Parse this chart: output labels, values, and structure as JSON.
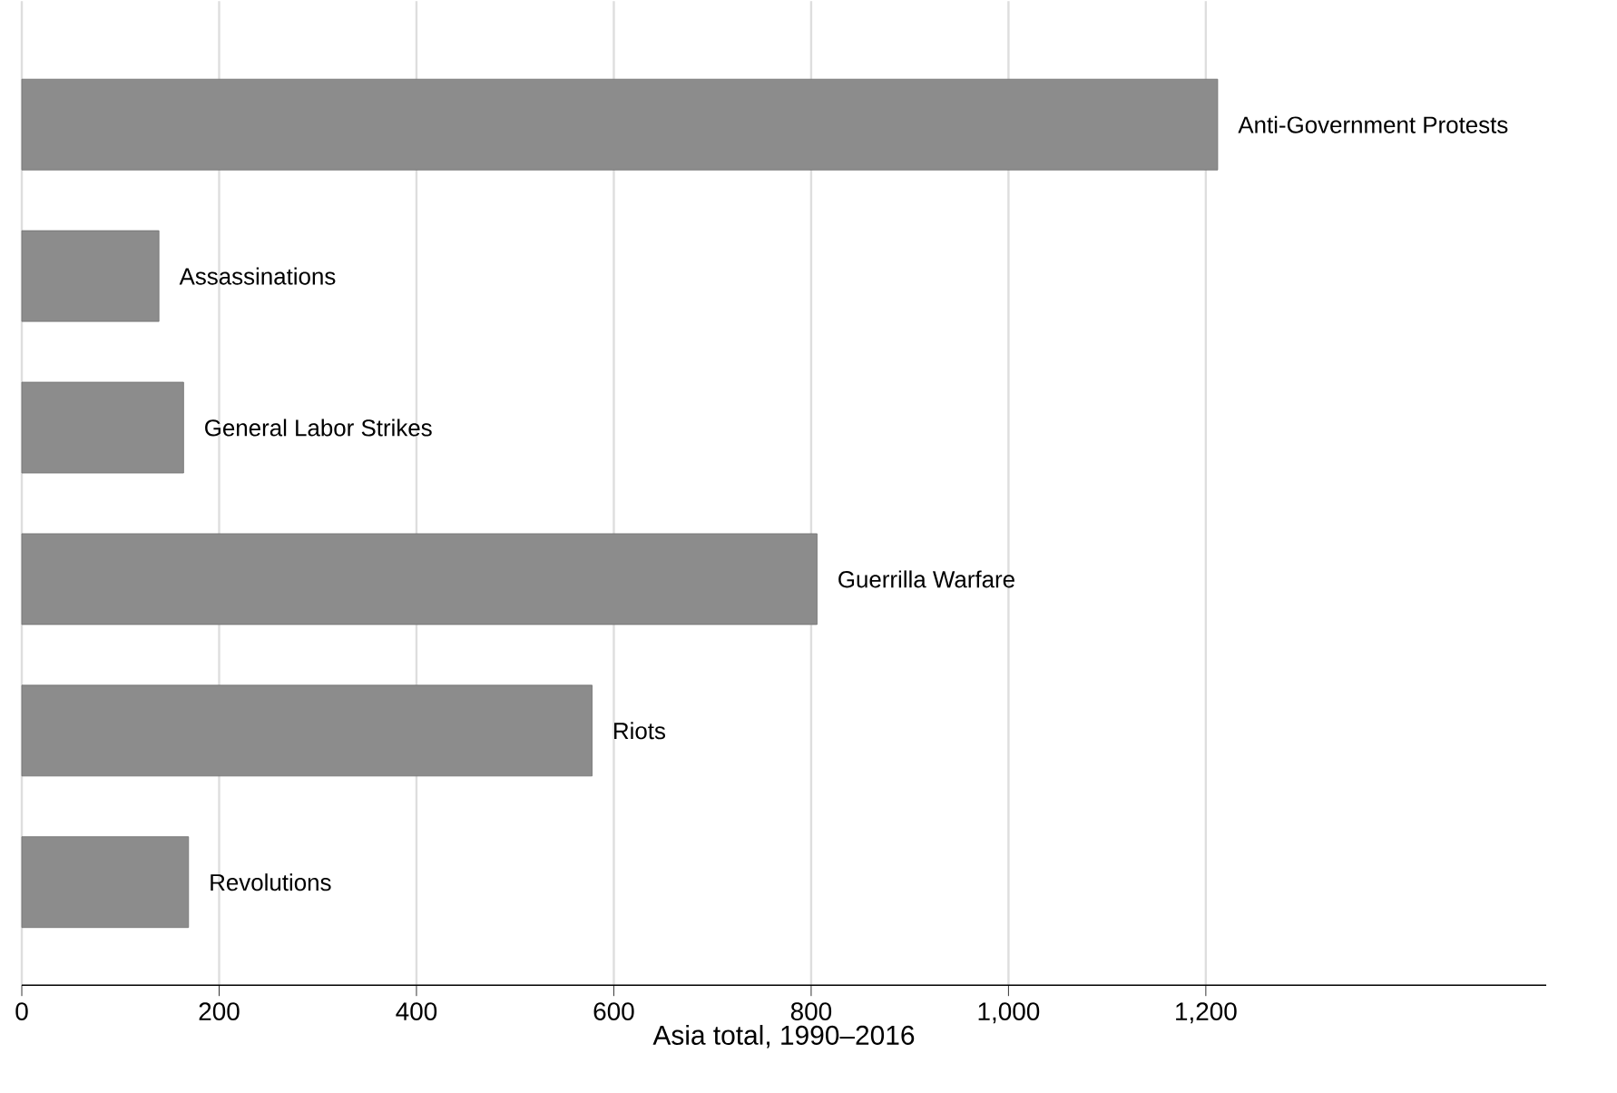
{
  "chart_data": {
    "type": "bar",
    "orientation": "horizontal",
    "xlabel": "Asia total, 1990–2016",
    "categories": [
      "Anti-Government Protests",
      "Assassinations",
      "General Labor Strikes",
      "Guerrilla Warfare",
      "Riots",
      "Revolutions"
    ],
    "values": [
      1212,
      139,
      164,
      806,
      578,
      169
    ],
    "color": "#8c8c8c",
    "xlim": [
      0,
      1545
    ],
    "xticks": [
      0,
      200,
      400,
      600,
      800,
      {
        "value": 1000,
        "label": "1,000"
      },
      {
        "value": 1200,
        "label": "1,200"
      }
    ],
    "grid": "x",
    "tick_labels": "x"
  }
}
